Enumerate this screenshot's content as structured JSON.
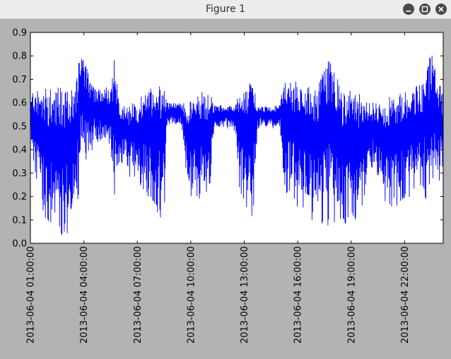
{
  "window": {
    "title": "Figure 1",
    "controls": {
      "minimize_icon": "minimize-icon",
      "maximize_icon": "maximize-icon",
      "close_icon": "close-icon"
    }
  },
  "colors": {
    "line": "#0000ff",
    "figure_bg": "#b3b3b3",
    "axes_bg": "#ffffff",
    "titlebar": "#ececec"
  },
  "chart_data": {
    "type": "line",
    "title": "",
    "xlabel": "",
    "ylabel": "",
    "ylim": [
      0.0,
      0.9
    ],
    "xlim": [
      "2013-06-04 01:00:00",
      "2013-06-05 00:10:00"
    ],
    "grid": false,
    "y_ticks": [
      "0.0",
      "0.1",
      "0.2",
      "0.3",
      "0.4",
      "0.5",
      "0.6",
      "0.7",
      "0.8",
      "0.9"
    ],
    "x_ticks": [
      "2013-06-04 01:00:00",
      "2013-06-04 04:00:00",
      "2013-06-04 07:00:00",
      "2013-06-04 10:00:00",
      "2013-06-04 13:00:00",
      "2013-06-04 16:00:00",
      "2013-06-04 19:00:00",
      "2013-06-04 22:00:00"
    ],
    "series": [
      {
        "color": "#0000ff",
        "envelope": [
          {
            "t": "01:00",
            "low": 0.4,
            "high": 0.64
          },
          {
            "t": "01:30",
            "low": 0.2,
            "high": 0.66
          },
          {
            "t": "02:00",
            "low": 0.05,
            "high": 0.66
          },
          {
            "t": "02:30",
            "low": 0.03,
            "high": 0.67
          },
          {
            "t": "03:00",
            "low": 0.04,
            "high": 0.66
          },
          {
            "t": "03:30",
            "low": 0.06,
            "high": 0.67
          },
          {
            "t": "03:50",
            "low": 0.3,
            "high": 0.83
          },
          {
            "t": "04:30",
            "low": 0.4,
            "high": 0.67
          },
          {
            "t": "05:00",
            "low": 0.38,
            "high": 0.67
          },
          {
            "t": "05:30",
            "low": 0.35,
            "high": 0.67
          },
          {
            "t": "05:45",
            "low": 0.06,
            "high": 0.82
          },
          {
            "t": "06:00",
            "low": 0.35,
            "high": 0.59
          },
          {
            "t": "06:30",
            "low": 0.28,
            "high": 0.59
          },
          {
            "t": "07:00",
            "low": 0.25,
            "high": 0.61
          },
          {
            "t": "07:30",
            "low": 0.2,
            "high": 0.65
          },
          {
            "t": "08:00",
            "low": 0.15,
            "high": 0.68
          },
          {
            "t": "08:30",
            "low": 0.08,
            "high": 0.69
          },
          {
            "t": "08:40",
            "low": 0.49,
            "high": 0.6
          },
          {
            "t": "09:30",
            "low": 0.49,
            "high": 0.6
          },
          {
            "t": "09:50",
            "low": 0.2,
            "high": 0.6
          },
          {
            "t": "10:30",
            "low": 0.17,
            "high": 0.65
          },
          {
            "t": "11:00",
            "low": 0.18,
            "high": 0.66
          },
          {
            "t": "11:20",
            "low": 0.48,
            "high": 0.59
          },
          {
            "t": "12:30",
            "low": 0.48,
            "high": 0.59
          },
          {
            "t": "12:45",
            "low": 0.22,
            "high": 0.65
          },
          {
            "t": "13:30",
            "low": 0.08,
            "high": 0.71
          },
          {
            "t": "13:45",
            "low": 0.48,
            "high": 0.59
          },
          {
            "t": "15:00",
            "low": 0.48,
            "high": 0.59
          },
          {
            "t": "15:15",
            "low": 0.22,
            "high": 0.73
          },
          {
            "t": "16:00",
            "low": 0.14,
            "high": 0.69
          },
          {
            "t": "17:00",
            "low": 0.08,
            "high": 0.66
          },
          {
            "t": "17:45",
            "low": 0.07,
            "high": 0.8
          },
          {
            "t": "18:30",
            "low": 0.07,
            "high": 0.66
          },
          {
            "t": "19:30",
            "low": 0.1,
            "high": 0.64
          },
          {
            "t": "20:15",
            "low": 0.3,
            "high": 0.61
          },
          {
            "t": "21:00",
            "low": 0.13,
            "high": 0.62
          },
          {
            "t": "22:00",
            "low": 0.18,
            "high": 0.65
          },
          {
            "t": "23:00",
            "low": 0.23,
            "high": 0.68
          },
          {
            "t": "23:30",
            "low": 0.12,
            "high": 0.82
          },
          {
            "t": "00:10",
            "low": 0.3,
            "high": 0.63
          }
        ]
      }
    ]
  }
}
